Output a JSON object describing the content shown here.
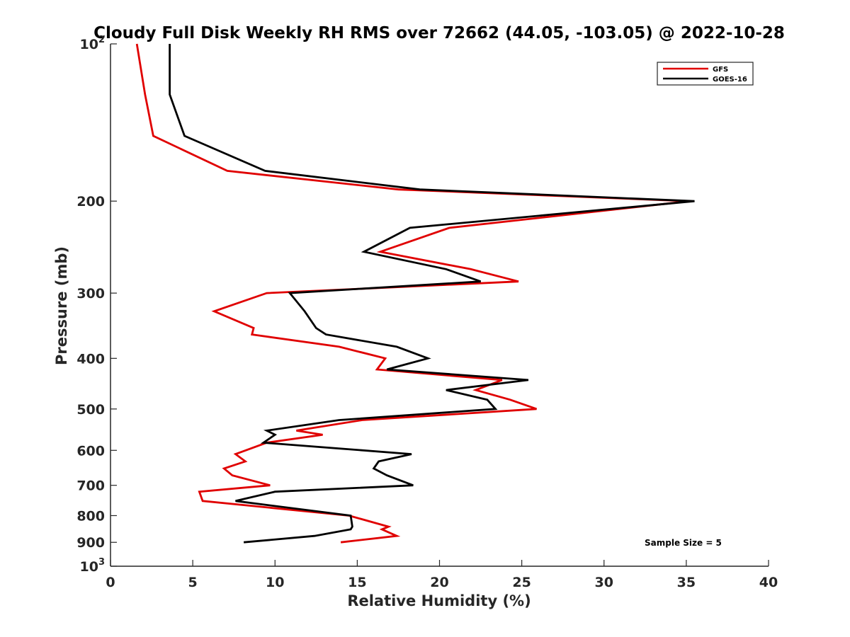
{
  "chart_data": {
    "type": "line",
    "title": "Cloudy Full Disk Weekly RH RMS over 72662 (44.05, -103.05) @ 2022-10-28",
    "xlabel": "Relative Humidity (%)",
    "ylabel": "Pressure (mb)",
    "xlim": [
      0,
      40
    ],
    "ylim": [
      100,
      1000
    ],
    "y_scale": "log",
    "y_reversed": true,
    "x_ticks": [
      "0",
      "5",
      "10",
      "15",
      "20",
      "25",
      "30",
      "35",
      "40"
    ],
    "y_ticks": [
      {
        "value": 100,
        "base": "10",
        "exp": "2"
      },
      {
        "value": 200,
        "label": "200"
      },
      {
        "value": 300,
        "label": "300"
      },
      {
        "value": 400,
        "label": "400"
      },
      {
        "value": 500,
        "label": "500"
      },
      {
        "value": 600,
        "label": "600"
      },
      {
        "value": 700,
        "label": "700"
      },
      {
        "value": 800,
        "label": "800"
      },
      {
        "value": 900,
        "label": "900"
      },
      {
        "value": 1000,
        "base": "10",
        "exp": "3"
      }
    ],
    "legend_position": "top-right",
    "annotation": "Sample Size = 5",
    "series": [
      {
        "name": "GFS",
        "color": "#e00000",
        "points": [
          [
            1.6,
            100
          ],
          [
            2.1,
            125
          ],
          [
            2.6,
            150
          ],
          [
            7.1,
            175
          ],
          [
            17.5,
            190
          ],
          [
            35.2,
            200
          ],
          [
            20.6,
            225
          ],
          [
            16.4,
            250
          ],
          [
            21.9,
            270
          ],
          [
            24.8,
            285
          ],
          [
            9.5,
            300
          ],
          [
            6.3,
            325
          ],
          [
            8.7,
            350
          ],
          [
            8.6,
            360
          ],
          [
            13.9,
            380
          ],
          [
            16.7,
            400
          ],
          [
            16.2,
            420
          ],
          [
            23.8,
            440
          ],
          [
            22.2,
            460
          ],
          [
            24.3,
            480
          ],
          [
            25.9,
            500
          ],
          [
            15.3,
            525
          ],
          [
            11.3,
            550
          ],
          [
            12.9,
            560
          ],
          [
            9.5,
            580
          ],
          [
            7.6,
            610
          ],
          [
            8.2,
            630
          ],
          [
            6.9,
            650
          ],
          [
            7.4,
            670
          ],
          [
            9.7,
            700
          ],
          [
            5.4,
            720
          ],
          [
            5.6,
            750
          ],
          [
            14.5,
            800
          ],
          [
            16.9,
            840
          ],
          [
            16.5,
            850
          ],
          [
            17.4,
            875
          ],
          [
            14.0,
            900
          ]
        ]
      },
      {
        "name": "GOES-16",
        "color": "#000000",
        "points": [
          [
            3.6,
            100
          ],
          [
            3.6,
            125
          ],
          [
            4.5,
            150
          ],
          [
            9.4,
            175
          ],
          [
            18.8,
            190
          ],
          [
            35.5,
            200
          ],
          [
            18.2,
            225
          ],
          [
            15.4,
            250
          ],
          [
            20.4,
            270
          ],
          [
            22.5,
            285
          ],
          [
            10.9,
            300
          ],
          [
            11.8,
            325
          ],
          [
            12.5,
            350
          ],
          [
            13.1,
            360
          ],
          [
            17.4,
            380
          ],
          [
            19.3,
            400
          ],
          [
            16.8,
            420
          ],
          [
            25.4,
            440
          ],
          [
            20.4,
            460
          ],
          [
            22.9,
            480
          ],
          [
            23.4,
            500
          ],
          [
            13.9,
            525
          ],
          [
            9.5,
            550
          ],
          [
            10.0,
            560
          ],
          [
            9.3,
            580
          ],
          [
            18.3,
            610
          ],
          [
            16.3,
            630
          ],
          [
            16.0,
            650
          ],
          [
            16.8,
            670
          ],
          [
            18.4,
            700
          ],
          [
            10.0,
            720
          ],
          [
            7.6,
            750
          ],
          [
            14.6,
            800
          ],
          [
            14.7,
            840
          ],
          [
            14.6,
            850
          ],
          [
            12.4,
            875
          ],
          [
            8.1,
            900
          ]
        ]
      }
    ]
  }
}
